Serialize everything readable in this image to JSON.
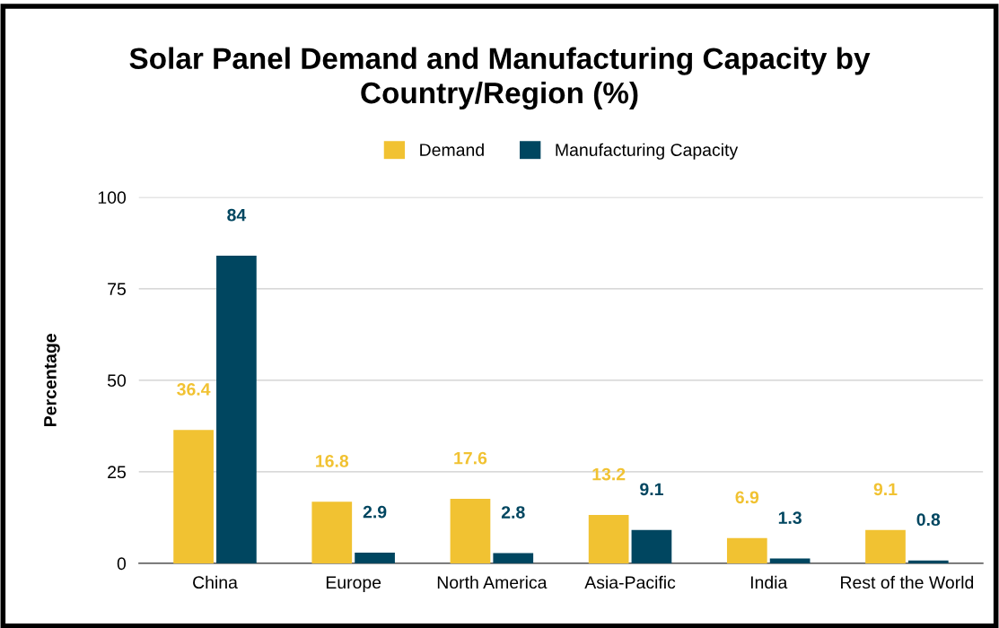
{
  "chart_data": {
    "type": "bar",
    "title": "Solar Panel Demand and Manufacturing Capacity by\nCountry/Region (%)",
    "ylabel": "Percentage",
    "categories": [
      "China",
      "Europe",
      "North America",
      "Asia-Pacific",
      "India",
      "Rest of the World"
    ],
    "series": [
      {
        "name": "Demand",
        "color": "#f1c232",
        "values": [
          36.4,
          16.8,
          17.6,
          13.2,
          6.9,
          9.1
        ]
      },
      {
        "name": "Manufacturing Capacity",
        "color": "#004660",
        "values": [
          84,
          2.9,
          2.8,
          9.1,
          1.3,
          0.8
        ]
      }
    ],
    "ylim": [
      0,
      100
    ],
    "yticks": [
      0,
      25,
      50,
      75,
      100
    ],
    "grid": "y",
    "legend": "top",
    "data_labels": true
  }
}
